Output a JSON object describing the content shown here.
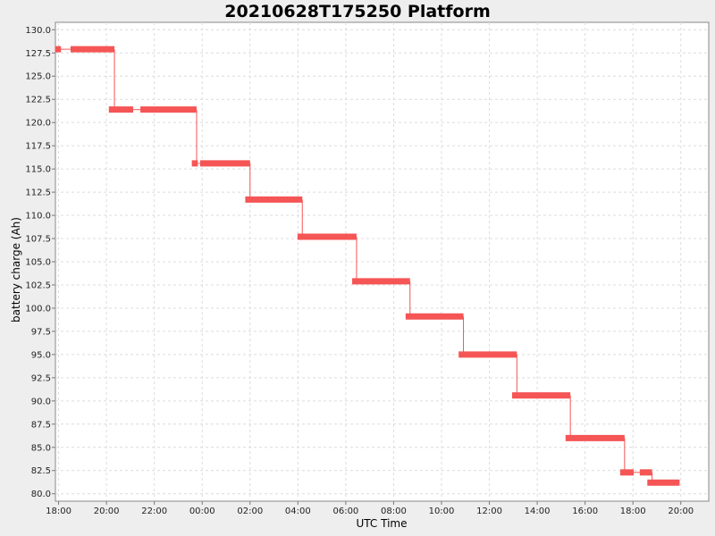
{
  "chart_data": {
    "type": "line",
    "title": "20210628T175250 Platform",
    "xlabel": "UTC Time",
    "ylabel": "battery charge (Ah)",
    "x_ticks": [
      "18:00",
      "20:00",
      "22:00",
      "00:00",
      "02:00",
      "04:00",
      "06:00",
      "08:00",
      "10:00",
      "12:00",
      "14:00",
      "16:00",
      "18:00",
      "20:00"
    ],
    "y_ticks": [
      "80.0",
      "82.5",
      "85.0",
      "87.5",
      "90.0",
      "92.5",
      "95.0",
      "97.5",
      "100.0",
      "102.5",
      "105.0",
      "107.5",
      "110.0",
      "112.5",
      "115.0",
      "117.5",
      "120.0",
      "122.5",
      "125.0",
      "127.5",
      "130.0"
    ],
    "x_range": [
      "17:52",
      "21:10 (+1 day)"
    ],
    "ylim": [
      79.2,
      130.8
    ],
    "grid": true,
    "series": [
      {
        "color": "#f55555",
        "steps": [
          {
            "start": "17:51",
            "end": "18:06",
            "value": 127.9
          },
          {
            "start": "18:30",
            "end": "20:20",
            "value": 127.9
          },
          {
            "start": "20:06",
            "end": "21:07",
            "value": 121.4
          },
          {
            "start": "21:25",
            "end": "23:46",
            "value": 121.4
          },
          {
            "start": "23:34",
            "end": "23:49",
            "value": 115.6
          },
          {
            "start": "23:55",
            "end": "02:00",
            "value": 115.6
          },
          {
            "start": "01:48",
            "end": "04:11",
            "value": 111.7
          },
          {
            "start": "03:59",
            "end": "06:27",
            "value": 107.7
          },
          {
            "start": "06:16",
            "end": "08:41",
            "value": 102.9
          },
          {
            "start": "08:30",
            "end": "10:55",
            "value": 99.1
          },
          {
            "start": "10:43",
            "end": "13:09",
            "value": 95.0
          },
          {
            "start": "12:57",
            "end": "15:23",
            "value": 90.6
          },
          {
            "start": "15:11",
            "end": "17:39",
            "value": 86.0
          },
          {
            "start": "17:28",
            "end": "18:02",
            "value": 82.3
          },
          {
            "start": "18:17",
            "end": "18:48",
            "value": 82.3
          },
          {
            "start": "18:36",
            "end": "19:57",
            "value": 81.2
          }
        ]
      }
    ]
  }
}
